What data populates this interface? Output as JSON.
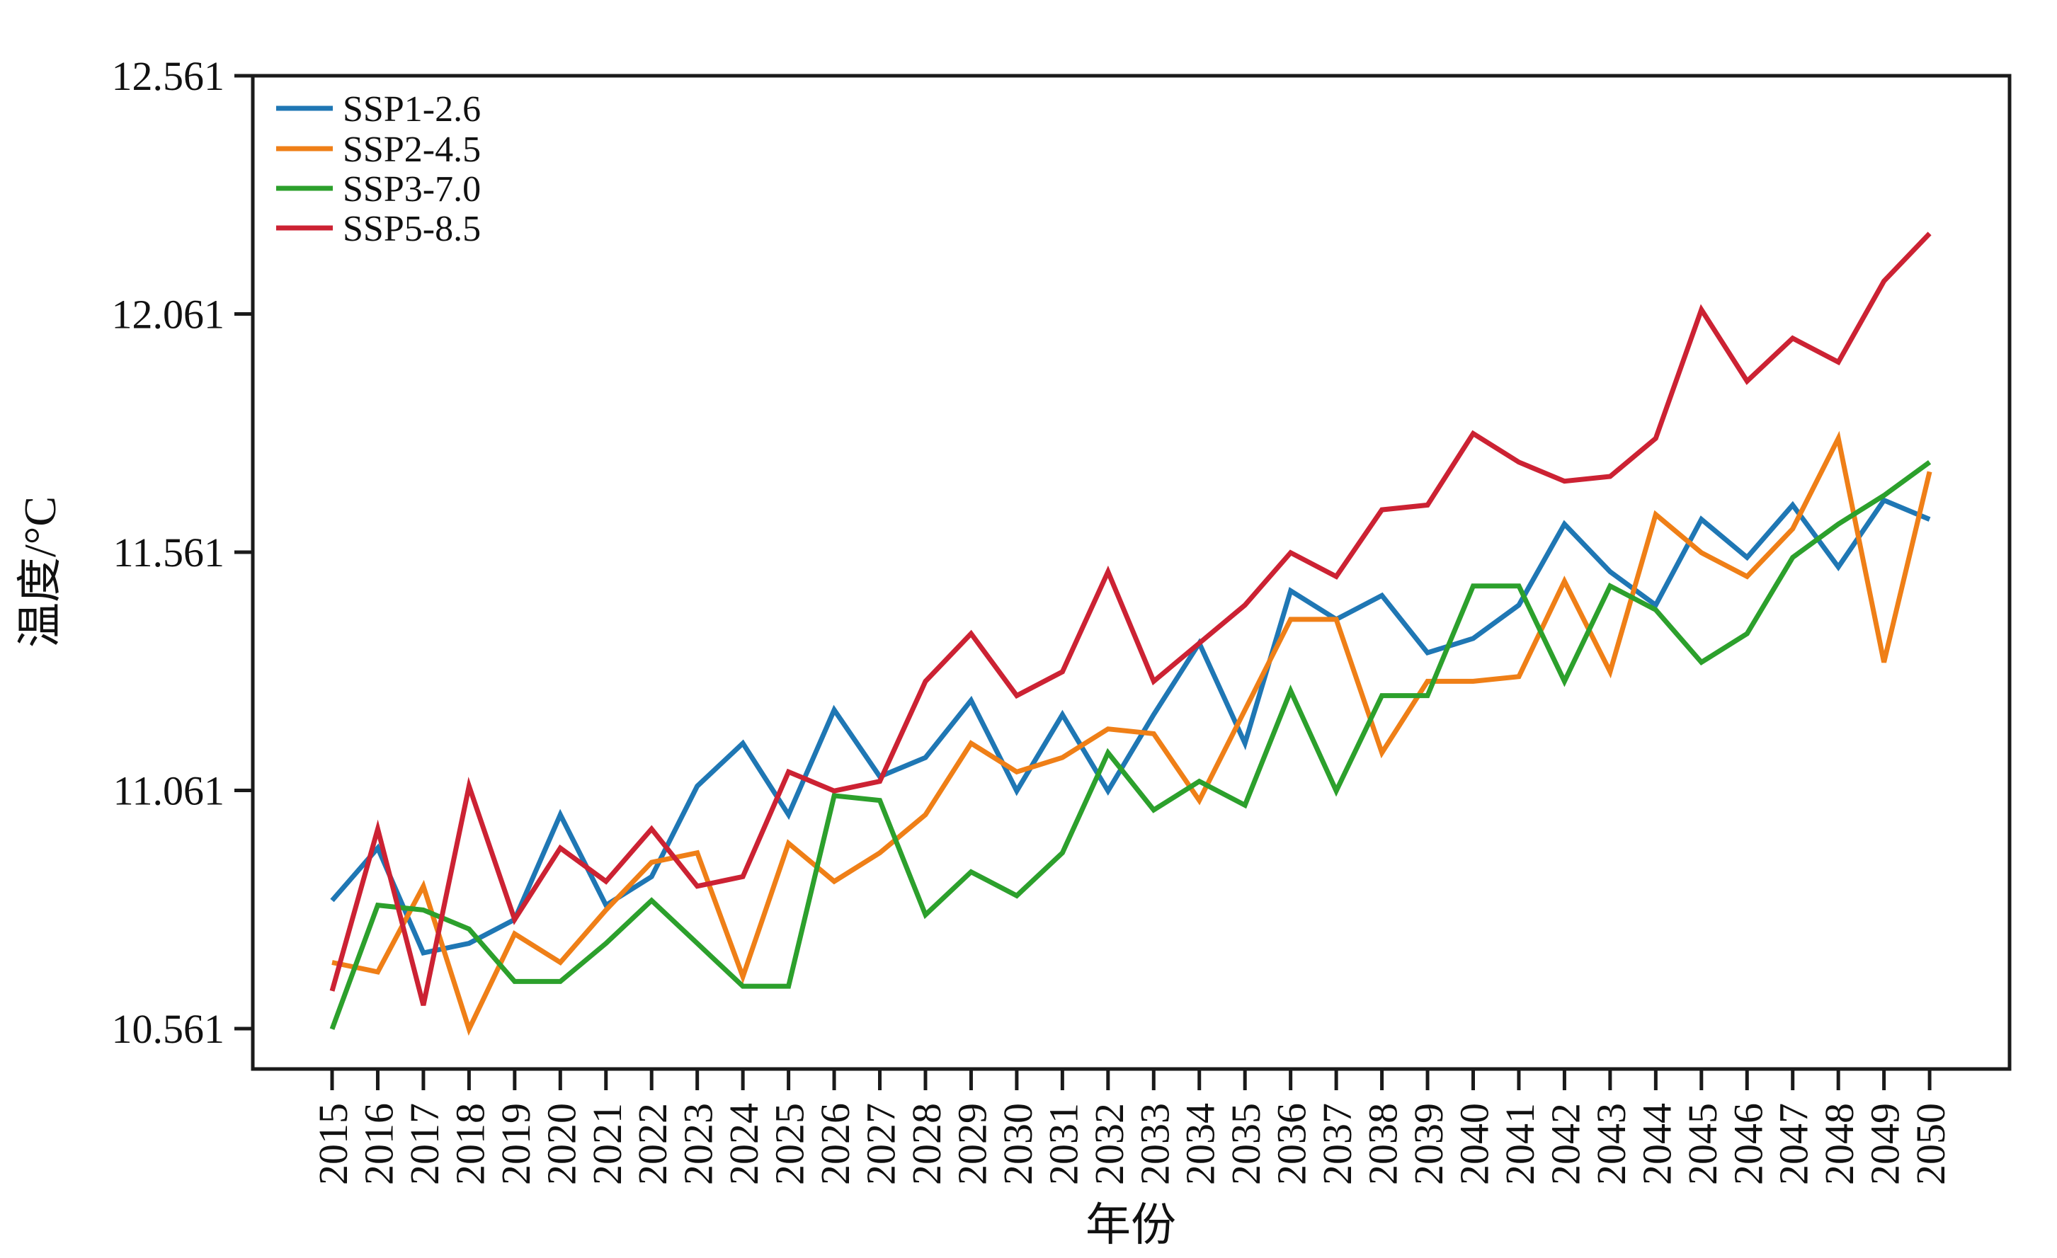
{
  "chart_data": {
    "type": "line",
    "title": "",
    "xlabel": "年份",
    "ylabel": "温度/°C",
    "x": [
      2015,
      2016,
      2017,
      2018,
      2019,
      2020,
      2021,
      2022,
      2023,
      2024,
      2025,
      2026,
      2027,
      2028,
      2029,
      2030,
      2031,
      2032,
      2033,
      2034,
      2035,
      2036,
      2037,
      2038,
      2039,
      2040,
      2041,
      2042,
      2043,
      2044,
      2045,
      2046,
      2047,
      2048,
      2049,
      2050
    ],
    "xtick_labels": [
      "2015",
      "2016",
      "2017",
      "2018",
      "2019",
      "2020",
      "2021",
      "2022",
      "2023",
      "2024",
      "2025",
      "2026",
      "2027",
      "2028",
      "2029",
      "2030",
      "2031",
      "2032",
      "2033",
      "2034",
      "2035",
      "2036",
      "2037",
      "2038",
      "2039",
      "2040",
      "2041",
      "2042",
      "2043",
      "2044",
      "2045",
      "2046",
      "2047",
      "2048",
      "2049",
      "2050"
    ],
    "yticks": [
      10.561,
      11.061,
      11.561,
      12.061,
      12.561
    ],
    "ytick_labels": [
      "10.561",
      "11.061",
      "11.561",
      "12.061",
      "12.561"
    ],
    "ylim": [
      10.476,
      12.561
    ],
    "xlim": [
      2013.26,
      2051.76
    ],
    "grid": false,
    "legend_position": "top-left",
    "axis_color": "#1a1a1a",
    "series": [
      {
        "name": "SSP1-2.6",
        "color": "#1f77b4",
        "values": [
          10.83,
          10.94,
          10.72,
          10.74,
          10.79,
          11.01,
          10.82,
          10.88,
          11.07,
          11.16,
          11.01,
          11.23,
          11.09,
          11.13,
          11.25,
          11.06,
          11.22,
          11.06,
          11.22,
          11.37,
          11.16,
          11.48,
          11.42,
          11.47,
          11.35,
          11.38,
          11.45,
          11.62,
          11.52,
          11.45,
          11.63,
          11.55,
          11.66,
          11.53,
          11.67,
          11.63
        ]
      },
      {
        "name": "SSP2-4.5",
        "color": "#ef7f17",
        "values": [
          10.7,
          10.68,
          10.86,
          10.56,
          10.76,
          10.7,
          10.81,
          10.91,
          10.93,
          10.67,
          10.95,
          10.87,
          10.93,
          11.01,
          11.16,
          11.1,
          11.13,
          11.19,
          11.18,
          11.04,
          11.23,
          11.42,
          11.42,
          11.14,
          11.29,
          11.29,
          11.3,
          11.5,
          11.31,
          11.64,
          11.56,
          11.51,
          11.61,
          11.8,
          11.33,
          11.73
        ]
      },
      {
        "name": "SSP3-7.0",
        "color": "#2ca02c",
        "values": [
          10.56,
          10.82,
          10.81,
          10.77,
          10.66,
          10.66,
          10.74,
          10.83,
          10.74,
          10.65,
          10.65,
          11.05,
          11.04,
          10.8,
          10.89,
          10.84,
          10.93,
          11.14,
          11.02,
          11.08,
          11.03,
          11.27,
          11.06,
          11.26,
          11.26,
          11.49,
          11.49,
          11.29,
          11.49,
          11.44,
          11.33,
          11.39,
          11.55,
          11.62,
          11.68,
          11.75
        ]
      },
      {
        "name": "SSP5-8.5",
        "color": "#cc2233",
        "values": [
          10.64,
          10.98,
          10.61,
          11.07,
          10.79,
          10.94,
          10.87,
          10.98,
          10.86,
          10.88,
          11.1,
          11.06,
          11.08,
          11.29,
          11.39,
          11.26,
          11.31,
          11.52,
          11.29,
          11.37,
          11.45,
          11.56,
          11.51,
          11.65,
          11.66,
          11.81,
          11.75,
          11.71,
          11.72,
          11.8,
          12.07,
          11.92,
          12.01,
          11.96,
          12.13,
          12.23
        ]
      }
    ]
  }
}
